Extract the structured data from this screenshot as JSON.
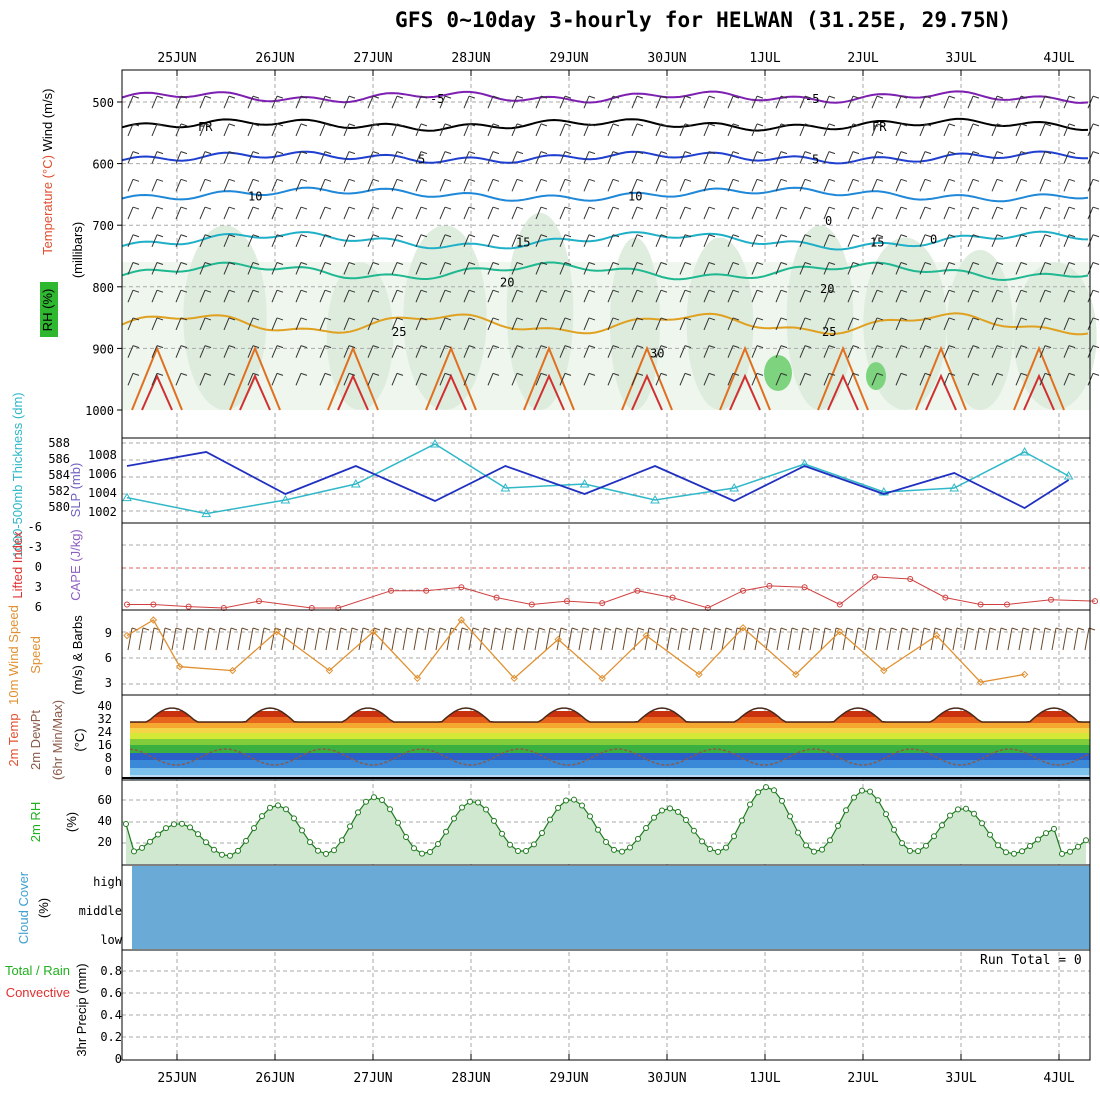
{
  "title": "GFS 0~10day 3-hourly for HELWAN (31.25E, 29.75N)",
  "dates": [
    "25JUN",
    "26JUN",
    "27JUN",
    "28JUN",
    "29JUN",
    "30JUN",
    "1JUL",
    "2JUL",
    "3JUL",
    "4JUL"
  ],
  "panels": {
    "upper": {
      "label_wind": "Wind (m/s)",
      "label_temp": "Temperature (°C)",
      "label_rh": "RH (%)",
      "label_mb": "(millibars)",
      "ticks": [
        "500",
        "600",
        "700",
        "800",
        "900",
        "1000"
      ],
      "contour_labels": [
        "-5",
        "FR",
        "5",
        "10",
        "15",
        "20",
        "25",
        "30",
        "0"
      ]
    },
    "thickness": {
      "label_thick": "1000-500mb Thickness (dm)",
      "label_slp": "SLP (mb)",
      "left_ticks": [
        "588",
        "586",
        "584",
        "582",
        "580"
      ],
      "right_ticks": [
        "1008",
        "1006",
        "1004",
        "1002"
      ]
    },
    "cape": {
      "label_li": "Lifted Index",
      "label_cape": "CAPE (J/kg)",
      "ticks": [
        "-6",
        "-3",
        "0",
        "3",
        "6"
      ]
    },
    "wind10": {
      "label": "10m Wind Speed",
      "label2": "(m/s) & Barbs",
      "ticks": [
        "9",
        "6",
        "3"
      ]
    },
    "temp2m": {
      "label_temp": "2m Temp",
      "label_dew": "2m DewPt",
      "label_minmax": "(6hr Min/Max)",
      "label_unit": "(°C)",
      "ticks": [
        "40",
        "32",
        "24",
        "16",
        "8",
        "0"
      ]
    },
    "rh2m": {
      "label": "2m RH",
      "unit": "(%)",
      "ticks": [
        "60",
        "40",
        "20"
      ]
    },
    "cloud": {
      "label": "Cloud Cover",
      "unit": "(%)",
      "levels": [
        "high",
        "middle",
        "low"
      ]
    },
    "precip": {
      "label_total": "Total / Rain",
      "label_conv": "Convective",
      "label_axis": "3hr Precip (mm)",
      "ticks": [
        "0.8",
        "0.6",
        "0.4",
        "0.2",
        "0"
      ],
      "run_total": "Run Total = 0"
    }
  },
  "chart_data": [
    {
      "type": "line",
      "title": "1000-500mb Thickness (dm)",
      "x": [
        "24JUN 18Z",
        "25JUN 12Z",
        "26JUN 06Z",
        "27JUN 00Z",
        "27JUN 18Z",
        "28JUN 12Z",
        "29JUN 06Z",
        "30JUN 00Z",
        "30JUN 18Z",
        "1JUL 12Z",
        "2JUL 06Z",
        "3JUL 00Z",
        "3JUL 18Z",
        "4JUL 06Z"
      ],
      "series": [
        {
          "name": "SLP (mb)",
          "values": [
            1007,
            1009,
            1003,
            1007,
            1002,
            1007,
            1003,
            1007,
            1002,
            1007,
            1003,
            1006,
            1001,
            1005
          ]
        },
        {
          "name": "1000-500mb Thickness (dm)",
          "values": [
            581.8,
            579.8,
            581.5,
            583.5,
            588.5,
            583.0,
            583.5,
            581.5,
            583.0,
            586.0,
            582.5,
            583.0,
            587.5,
            584.5
          ]
        }
      ],
      "ylim": [
        579,
        588
      ]
    },
    {
      "type": "line",
      "title": "10m Wind Speed",
      "x": [
        "24JUN 18Z",
        "25JUN 00Z",
        "25JUN 12Z",
        "26JUN 00Z",
        "26JUN 12Z",
        "27JUN 00Z",
        "27JUN 12Z",
        "28JUN 00Z",
        "28JUN 12Z",
        "29JUN 00Z",
        "29JUN 12Z",
        "30JUN 00Z",
        "30JUN 12Z",
        "1JUL 00Z",
        "1JUL 12Z",
        "2JUL 00Z",
        "2JUL 12Z",
        "3JUL 00Z",
        "3JUL 12Z",
        "4JUL 00Z",
        "4JUL 06Z"
      ],
      "series": [
        {
          "name": "10m Wind Speed",
          "values": [
            9,
            11,
            5,
            4.5,
            9.5,
            4.5,
            9.5,
            3.5,
            11,
            3.5,
            8.5,
            3.5,
            9,
            4,
            10,
            4,
            9.5,
            4.5,
            9,
            3,
            4
          ]
        }
      ],
      "ylim": [
        2,
        11
      ]
    },
    {
      "type": "area",
      "title": "2m RH",
      "x": [
        "24JUN 18Z",
        "25JUN 06Z",
        "25JUN 18Z",
        "26JUN 06Z",
        "26JUN 18Z",
        "27JUN 06Z",
        "27JUN 18Z",
        "28JUN 06Z",
        "28JUN 18Z",
        "29JUN 06Z",
        "29JUN 18Z",
        "30JUN 06Z",
        "30JUN 18Z",
        "1JUL 06Z",
        "1JUL 18Z",
        "2JUL 06Z",
        "2JUL 18Z",
        "3JUL 06Z",
        "3JUL 18Z",
        "4JUL 06Z"
      ],
      "series": [
        {
          "name": "2m RH",
          "values": [
            12,
            40,
            8,
            58,
            10,
            66,
            10,
            62,
            12,
            64,
            12,
            55,
            12,
            76,
            12,
            73,
            12,
            55,
            10,
            36
          ]
        }
      ],
      "ylim": [
        0,
        80
      ]
    }
  ]
}
